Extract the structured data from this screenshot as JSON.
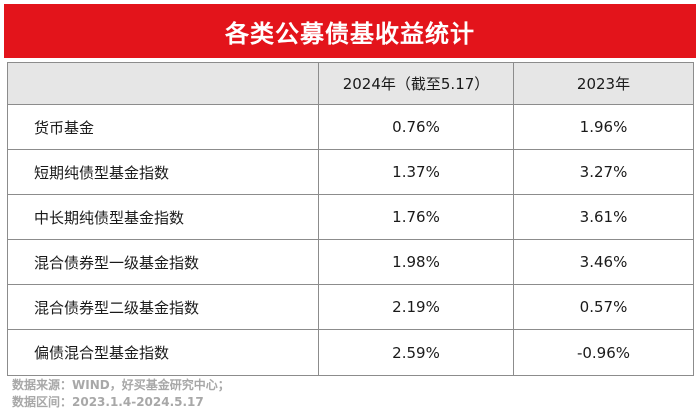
{
  "title": "各类公募债基收益统计",
  "table": {
    "headers": [
      "",
      "2024年（截至5.17）",
      "2023年"
    ],
    "rows": [
      {
        "name": "货币基金",
        "y2024": "0.76%",
        "y2023": "1.96%"
      },
      {
        "name": "短期纯债型基金指数",
        "y2024": "1.37%",
        "y2023": "3.27%"
      },
      {
        "name": "中长期纯债型基金指数",
        "y2024": "1.76%",
        "y2023": "3.61%"
      },
      {
        "name": "混合债券型一级基金指数",
        "y2024": "1.98%",
        "y2023": "3.46%"
      },
      {
        "name": "混合债券型二级基金指数",
        "y2024": "2.19%",
        "y2023": "0.57%"
      },
      {
        "name": "偏债混合型基金指数",
        "y2024": "2.59%",
        "y2023": "-0.96%"
      }
    ]
  },
  "footer": {
    "source": "数据来源：WIND，好买基金研究中心；",
    "range": "数据区间：2023.1.4-2024.5.17"
  },
  "colors": {
    "banner": "#e3141b",
    "header_bg": "#e6e6e6",
    "border": "#8c8c8c",
    "footer_text": "#a8a8a8"
  }
}
